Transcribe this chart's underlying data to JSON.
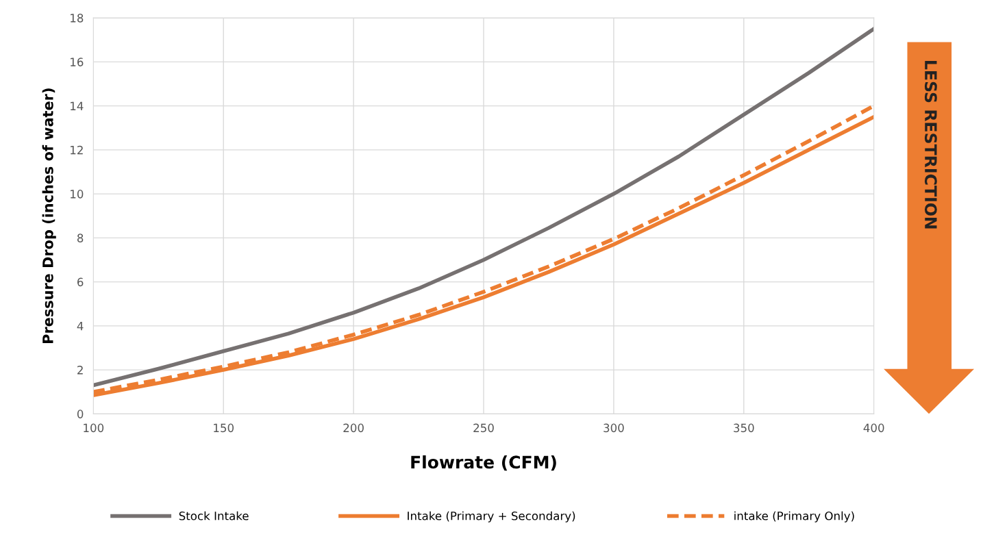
{
  "chart_data": {
    "type": "line",
    "xlabel": "Flowrate (CFM)",
    "ylabel": "Pressure Drop (inches of water)",
    "x": [
      100,
      125,
      150,
      175,
      200,
      225,
      250,
      275,
      300,
      325,
      350,
      375,
      400
    ],
    "series": [
      {
        "name": "Stock Intake",
        "color": "#767171",
        "line_style": "solid",
        "values": [
          1.3,
          2.05,
          2.85,
          3.65,
          4.6,
          5.7,
          7.0,
          8.45,
          10.0,
          11.7,
          13.6,
          15.5,
          17.5
        ]
      },
      {
        "name": "Intake (Primary + Secondary)",
        "color": "#ed7d31",
        "line_style": "solid",
        "values": [
          0.85,
          1.4,
          2.0,
          2.65,
          3.4,
          4.3,
          5.3,
          6.45,
          7.7,
          9.1,
          10.5,
          12.0,
          13.5
        ]
      },
      {
        "name": "intake (Primary Only)",
        "color": "#ed7d31",
        "line_style": "dashed",
        "values": [
          1.0,
          1.55,
          2.15,
          2.8,
          3.6,
          4.5,
          5.55,
          6.7,
          7.95,
          9.35,
          10.85,
          12.4,
          14.0
        ]
      }
    ],
    "xlim": [
      100,
      400
    ],
    "xticks": [
      100,
      150,
      200,
      250,
      300,
      350,
      400
    ],
    "ylim": [
      0,
      18
    ],
    "yticks": [
      0,
      2,
      4,
      6,
      8,
      10,
      12,
      14,
      16,
      18
    ],
    "grid": true,
    "legend": "bottom",
    "marker": "none",
    "annotations": [
      "LESS RESTRICTION"
    ]
  }
}
